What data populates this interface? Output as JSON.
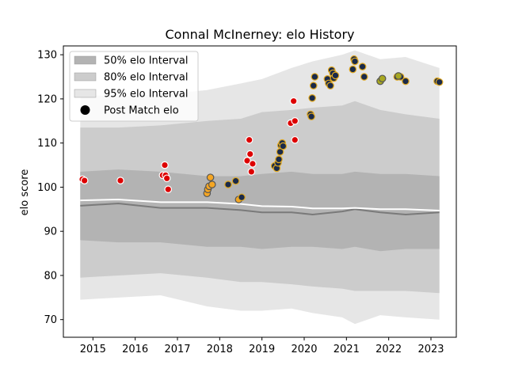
{
  "chart_data": {
    "type": "scatter",
    "title": "Connal McInerney: elo History",
    "xlabel": "",
    "ylabel": "elo score",
    "xlim": [
      2014.3,
      2023.6
    ],
    "ylim": [
      66,
      132
    ],
    "x_ticks": [
      2015,
      2016,
      2017,
      2018,
      2019,
      2020,
      2021,
      2022,
      2023
    ],
    "y_ticks": [
      70,
      80,
      90,
      100,
      110,
      120,
      130
    ],
    "grid": false,
    "legend": {
      "placement": "top-left",
      "entries": [
        {
          "label": "50% elo Interval",
          "color": "#b3b3b3"
        },
        {
          "label": "80% elo Interval",
          "color": "#cccccc"
        },
        {
          "label": "95% elo Interval",
          "color": "#e6e6e6"
        },
        {
          "label": "Post Match elo",
          "color": "#000000"
        }
      ]
    },
    "bands": {
      "x": [
        2014.7,
        2015.6,
        2016.6,
        2017.7,
        2018.5,
        2019.0,
        2019.7,
        2020.2,
        2020.9,
        2021.2,
        2021.8,
        2022.4,
        2023.2
      ],
      "p95_upper": [
        121.0,
        120.5,
        121.0,
        122.0,
        123.5,
        124.5,
        127.0,
        128.5,
        130.0,
        131.0,
        129.0,
        129.5,
        127.0
      ],
      "p95_lower": [
        74.5,
        75.0,
        75.5,
        73.0,
        72.0,
        72.0,
        72.5,
        71.5,
        70.5,
        69.0,
        71.0,
        70.5,
        70.0
      ],
      "p80_upper": [
        113.5,
        113.5,
        114.0,
        115.0,
        115.5,
        117.0,
        117.5,
        118.0,
        118.5,
        119.5,
        117.5,
        116.5,
        115.5
      ],
      "p80_lower": [
        79.5,
        80.0,
        80.5,
        79.5,
        78.5,
        78.5,
        78.0,
        77.5,
        77.0,
        76.5,
        76.5,
        76.5,
        76.0
      ],
      "p50_upper": [
        103.5,
        104.0,
        103.5,
        102.5,
        102.5,
        103.0,
        103.5,
        103.0,
        103.0,
        103.5,
        103.0,
        103.0,
        102.5
      ],
      "p50_lower": [
        88.0,
        87.5,
        87.5,
        86.5,
        86.5,
        86.0,
        86.5,
        86.5,
        86.0,
        86.5,
        85.5,
        86.0,
        86.0
      ],
      "mean_line": [
        97.0,
        97.2,
        96.6,
        96.6,
        96.2,
        95.7,
        95.6,
        95.2,
        95.2,
        95.3,
        95.0,
        95.0,
        94.7
      ],
      "median_line": [
        95.8,
        96.3,
        95.3,
        95.3,
        94.8,
        94.3,
        94.3,
        93.8,
        94.5,
        95.0,
        94.3,
        93.8,
        94.3
      ]
    },
    "series": [
      {
        "fill": "#dd0000",
        "edge": "#ffffff",
        "points": [
          [
            2014.75,
            101.8
          ],
          [
            2014.8,
            101.5
          ],
          [
            2015.65,
            101.5
          ],
          [
            2016.65,
            102.7
          ],
          [
            2016.7,
            105.0
          ],
          [
            2016.72,
            102.7
          ],
          [
            2016.75,
            102.0
          ],
          [
            2016.78,
            99.5
          ],
          [
            2018.65,
            106.0
          ],
          [
            2018.7,
            110.7
          ],
          [
            2018.72,
            107.5
          ],
          [
            2018.75,
            103.5
          ],
          [
            2018.78,
            105.3
          ],
          [
            2019.68,
            114.5
          ],
          [
            2019.75,
            119.5
          ],
          [
            2019.78,
            115.0
          ],
          [
            2019.78,
            110.7
          ]
        ]
      },
      {
        "fill": "#f5a623",
        "edge": "#555555",
        "points": [
          [
            2017.7,
            98.6
          ],
          [
            2017.72,
            99.5
          ],
          [
            2017.75,
            100.2
          ],
          [
            2017.78,
            102.2
          ],
          [
            2017.82,
            100.6
          ],
          [
            2018.45,
            97.2
          ]
        ]
      },
      {
        "fill": "#1a2a4a",
        "edge": "#e0a820",
        "points": [
          [
            2018.2,
            100.6
          ],
          [
            2018.38,
            101.4
          ],
          [
            2018.52,
            97.7
          ],
          [
            2019.3,
            104.8
          ],
          [
            2019.35,
            104.3
          ],
          [
            2019.38,
            105.5
          ],
          [
            2019.4,
            106.3
          ],
          [
            2019.43,
            108.0
          ],
          [
            2019.45,
            109.5
          ],
          [
            2019.48,
            110.0
          ],
          [
            2019.5,
            109.3
          ],
          [
            2020.15,
            116.5
          ],
          [
            2020.17,
            116.0
          ],
          [
            2020.19,
            120.2
          ],
          [
            2020.22,
            123.0
          ],
          [
            2020.25,
            125.0
          ],
          [
            2020.55,
            124.5
          ],
          [
            2020.58,
            123.5
          ],
          [
            2020.62,
            123.0
          ],
          [
            2020.65,
            126.5
          ],
          [
            2020.68,
            125.8
          ],
          [
            2020.7,
            124.7
          ],
          [
            2020.74,
            125.3
          ],
          [
            2021.15,
            126.7
          ],
          [
            2021.18,
            129.0
          ],
          [
            2021.2,
            128.5
          ],
          [
            2021.38,
            127.3
          ],
          [
            2021.42,
            125.0
          ],
          [
            2022.2,
            125.0
          ],
          [
            2022.28,
            125.0
          ],
          [
            2022.4,
            124.0
          ],
          [
            2023.15,
            124.0
          ],
          [
            2023.2,
            123.8
          ]
        ]
      },
      {
        "fill": "#a8a820",
        "edge": "#555555",
        "points": [
          [
            2021.8,
            124.0
          ],
          [
            2021.85,
            124.6
          ],
          [
            2022.23,
            125.2
          ]
        ]
      }
    ]
  }
}
